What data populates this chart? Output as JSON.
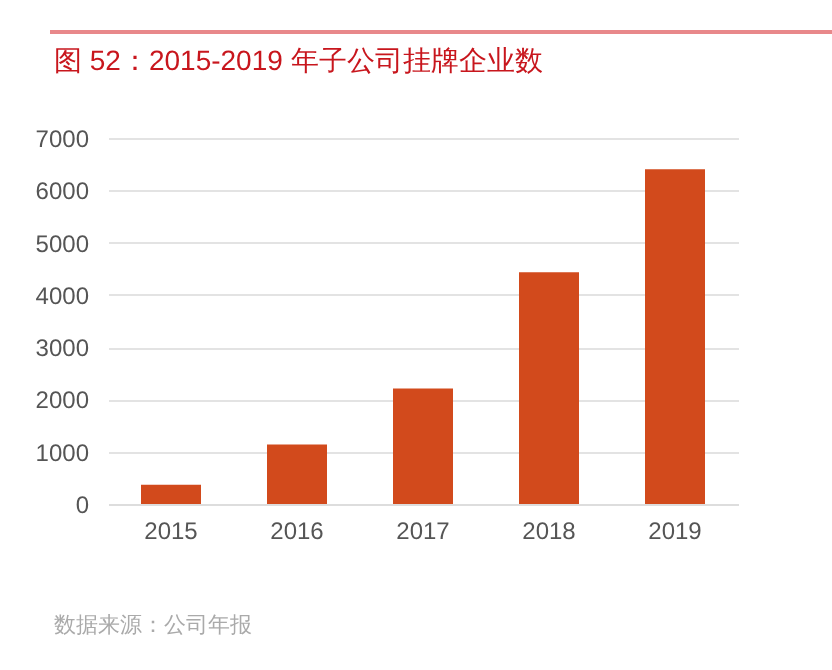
{
  "chart_data": {
    "type": "bar",
    "title": "图 52：2015-2019 年子公司挂牌企业数",
    "categories": [
      "2015",
      "2016",
      "2017",
      "2018",
      "2019"
    ],
    "values": [
      370,
      1140,
      2210,
      4430,
      6400
    ],
    "color": "#d24a1c",
    "ylim": [
      0,
      7000
    ],
    "yticks": [
      0,
      1000,
      2000,
      3000,
      4000,
      5000,
      6000,
      7000
    ],
    "grid": "y",
    "annotations": [
      "数据来源：公司年报"
    ]
  }
}
